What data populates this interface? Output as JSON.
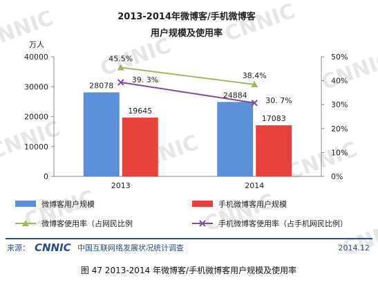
{
  "chart_data": {
    "type": "bar",
    "title": "2013-2014年微博客/手机微博客",
    "subtitle": "用户规模及使用率",
    "categories": [
      "2013",
      "2014"
    ],
    "y_left": {
      "unit_label": "万人",
      "ylim": [
        0,
        40000
      ],
      "ticks": [
        "0",
        "10000",
        "20000",
        "30000",
        "40000"
      ]
    },
    "y_right": {
      "ylim": [
        0,
        50
      ],
      "ticks": [
        "0%",
        "10%",
        "20%",
        "30%",
        "40%",
        "50%"
      ]
    },
    "bar_series": [
      {
        "name": "微博客用户规模",
        "color": "#5b8fd8",
        "values": [
          28078,
          24884
        ],
        "labels": [
          "28078",
          "24884"
        ]
      },
      {
        "name": "手机微博客用户规模",
        "color": "#e8403a",
        "values": [
          19645,
          17083
        ],
        "labels": [
          "19645",
          "17083"
        ]
      }
    ],
    "line_series": [
      {
        "name": "微博客使用率（占网民比例",
        "color": "#9bbb59",
        "marker": "triangle",
        "values": [
          45.5,
          38.4
        ],
        "labels": [
          "45.5%",
          "38.4%"
        ]
      },
      {
        "name": "手机微博客使用率（占手机网民比例）",
        "color": "#7f4c9e",
        "marker": "x",
        "values": [
          39.3,
          30.7
        ],
        "labels": [
          "39. 3%",
          "30. 7%"
        ]
      }
    ],
    "grid": false,
    "legend_position": "bottom"
  },
  "footer": {
    "source_prefix": "来源：",
    "logo_text": "CNNIC",
    "source_org": "中国互联网络发展状况统计调查",
    "date": "2014.12"
  },
  "caption": "图  47    2013-2014 年微博客/手机微博客用户规模及使用率",
  "watermark": "CNNIC"
}
